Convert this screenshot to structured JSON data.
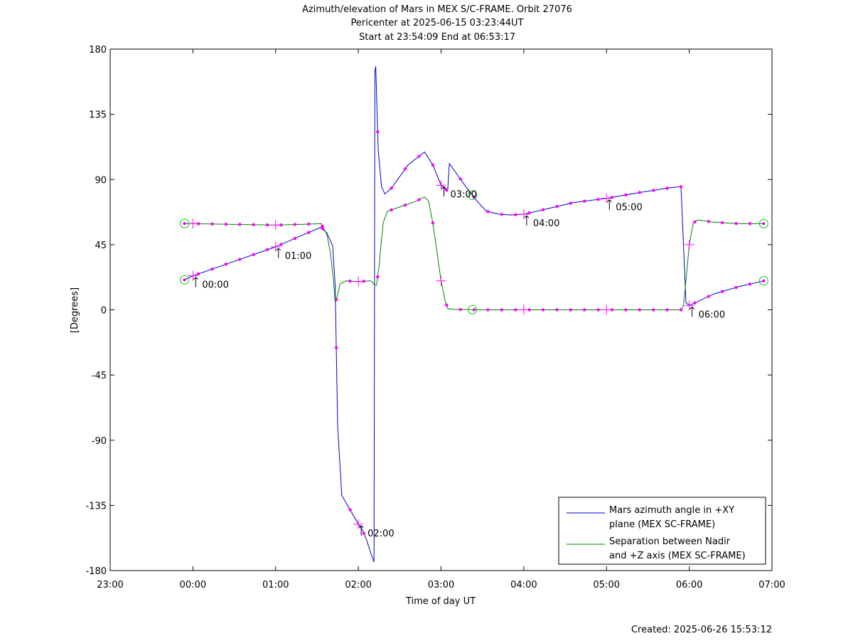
{
  "chart_data": {
    "type": "line",
    "title_lines": [
      "Azimuth/elevation of Mars in MEX S/C-FRAME.  Orbit 27076",
      "Pericenter at 2025-06-15 03:23:44UT",
      "Start at 23:54:09 End at 06:53:17"
    ],
    "xlabel": "Time of day UT",
    "ylabel": "[Degrees]",
    "xlim": [
      -1,
      7
    ],
    "ylim": [
      -180,
      180
    ],
    "x_tick_values": [
      -1,
      0,
      1,
      2,
      3,
      4,
      5,
      6,
      7
    ],
    "x_tick_labels": [
      "23:00",
      "00:00",
      "01:00",
      "02:00",
      "03:00",
      "04:00",
      "05:00",
      "06:00",
      "07:00"
    ],
    "y_tick_values": [
      -180,
      -135,
      -90,
      -45,
      0,
      45,
      90,
      135,
      180
    ],
    "y_tick_labels": [
      "-180",
      "-135",
      "-90",
      "-45",
      "0",
      "45",
      "90",
      "135",
      "180"
    ],
    "legend_position": "bottom-right",
    "series": [
      {
        "name_lines": [
          "Mars azimuth angle in +XY",
          "plane (MEX SC-FRAME)"
        ],
        "color": "#0000cc",
        "x": [
          -0.1,
          0.0,
          0.5,
          1.0,
          1.3,
          1.55,
          1.62,
          1.66,
          1.69,
          1.72,
          1.75,
          1.8,
          2.0,
          2.05,
          2.1,
          2.15,
          2.19,
          2.2,
          2.21,
          2.24,
          2.28,
          2.32,
          2.4,
          2.6,
          2.8,
          2.9,
          3.0,
          3.08,
          3.1,
          3.15,
          3.3,
          3.45,
          3.55,
          3.7,
          3.85,
          4.0,
          4.3,
          4.6,
          5.0,
          5.4,
          5.8,
          5.9,
          5.93,
          5.96,
          6.0,
          6.3,
          6.6,
          6.9
        ],
        "y": [
          20.7,
          23.5,
          33.5,
          43.5,
          51,
          57,
          53,
          48,
          44,
          17,
          -80,
          -128,
          -148,
          -152,
          -159,
          -168,
          -174,
          165,
          168,
          110,
          85,
          80,
          84,
          100,
          109,
          100,
          86,
          82,
          101,
          97,
          85,
          74,
          68,
          66,
          65.5,
          66,
          70,
          74,
          77,
          81,
          84.5,
          85,
          45,
          5,
          3,
          11,
          16,
          20
        ]
      },
      {
        "name_lines": [
          "Separation between Nadir",
          "and +Z axis (MEX SC-FRAME)"
        ],
        "color": "#008000",
        "x": [
          -0.1,
          0.0,
          0.5,
          1.0,
          1.3,
          1.55,
          1.62,
          1.66,
          1.7,
          1.72,
          1.74,
          1.78,
          1.85,
          2.0,
          2.15,
          2.2,
          2.22,
          2.25,
          2.3,
          2.35,
          2.5,
          2.7,
          2.8,
          2.85,
          2.9,
          2.95,
          3.0,
          3.05,
          3.08,
          3.15,
          3.5,
          4.0,
          4.5,
          5.0,
          5.5,
          5.9,
          5.93,
          5.96,
          6.0,
          6.05,
          6.1,
          6.3,
          6.6,
          6.9
        ],
        "y": [
          59.6,
          59.5,
          59,
          58.5,
          59,
          59.5,
          52,
          40,
          20,
          5,
          8,
          18,
          20,
          19.5,
          20,
          17,
          17,
          30,
          60,
          68,
          71,
          75,
          78,
          75,
          60,
          40,
          20,
          6,
          1,
          0.3,
          0,
          0,
          0,
          0,
          0,
          0,
          3,
          20,
          45,
          60,
          62,
          60.5,
          59.5,
          59.5
        ]
      }
    ],
    "annotations": [
      {
        "text": "00:00",
        "x": 0.0,
        "y": 23.5
      },
      {
        "text": "01:00",
        "x": 1.0,
        "y": 43.5
      },
      {
        "text": "02:00",
        "x": 2.0,
        "y": -148
      },
      {
        "text": "03:00",
        "x": 3.0,
        "y": 86
      },
      {
        "text": "04:00",
        "x": 4.0,
        "y": 66
      },
      {
        "text": "05:00",
        "x": 5.0,
        "y": 77
      },
      {
        "text": "06:00",
        "x": 6.0,
        "y": 3
      }
    ],
    "marker_color": "#ff00ff",
    "circle_marker_color": "#00cc00"
  },
  "footer": {
    "created": "Created: 2025-06-26 15:53:12"
  }
}
